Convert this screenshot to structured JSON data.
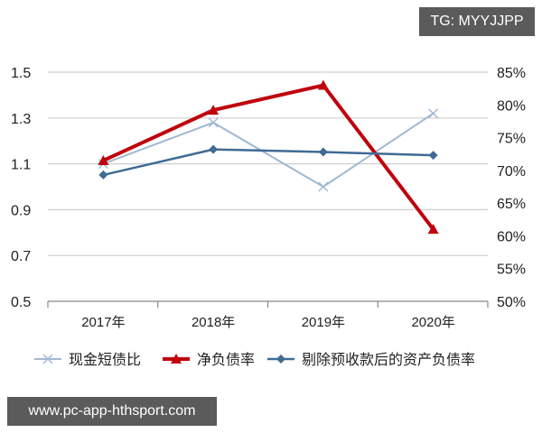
{
  "watermark_top": "TG: MYYJJPP",
  "watermark_bottom": "www.pc-app-hthsport.com",
  "chart_data": {
    "type": "line",
    "title": "",
    "xlabel": "",
    "ylabel": "",
    "categories": [
      "2017年",
      "2018年",
      "2019年",
      "2020年"
    ],
    "left_axis": {
      "ylim": [
        0.5,
        1.5
      ],
      "ticks": [
        "1.5",
        "1.3",
        "1.1",
        "0.9",
        "0.7",
        "0.5"
      ]
    },
    "right_axis": {
      "ylim": [
        50,
        85
      ],
      "ticks": [
        "85%",
        "80%",
        "75%",
        "70%",
        "65%",
        "60%",
        "55%",
        "50%"
      ]
    },
    "grid": true,
    "legend_position": "bottom",
    "series": [
      {
        "name": "现金短债比",
        "axis": "left",
        "marker": "x",
        "color": "#9fb8d3",
        "values": [
          1.1,
          1.28,
          1.0,
          1.32
        ]
      },
      {
        "name": "净负债率",
        "axis": "right",
        "marker": "triangle",
        "color": "#c0000c",
        "values": [
          71.5,
          79.2,
          83.0,
          61.0
        ]
      },
      {
        "name": "剔除预收款后的资产负债率",
        "axis": "right",
        "marker": "diamond",
        "color": "#3f6b94",
        "values": [
          69.3,
          73.2,
          72.8,
          72.3
        ]
      }
    ]
  }
}
